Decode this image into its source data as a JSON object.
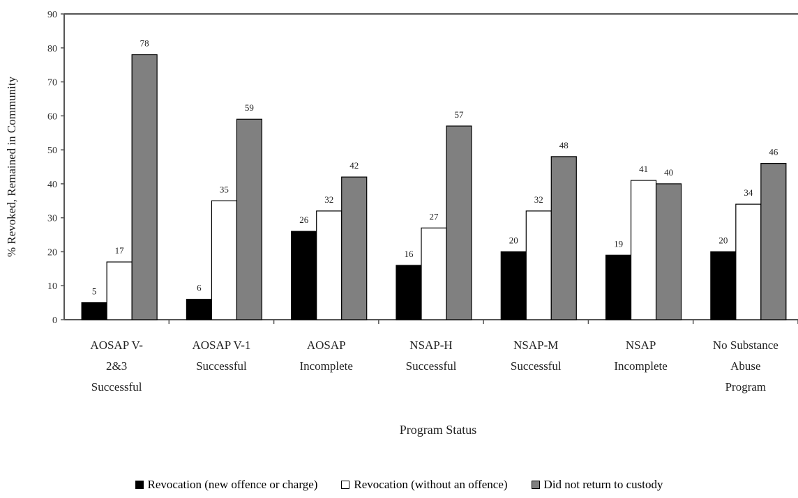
{
  "chart_data": {
    "type": "bar",
    "categories": [
      [
        "AOSAP V-",
        "2&3",
        "Successful"
      ],
      [
        "AOSAP V-1",
        "Successful"
      ],
      [
        "AOSAP",
        "Incomplete"
      ],
      [
        "NSAP-H",
        "Successful"
      ],
      [
        "NSAP-M",
        "Successful"
      ],
      [
        "NSAP",
        "Incomplete"
      ],
      [
        "No Substance",
        "Abuse",
        "Program"
      ]
    ],
    "series": [
      {
        "name": "Revocation (new offence or charge)",
        "color": "#000000",
        "values": [
          5,
          6,
          26,
          16,
          20,
          19,
          20
        ],
        "labels": [
          "5",
          "6",
          "26",
          "16",
          "20",
          "19",
          "20"
        ]
      },
      {
        "name": "Revocation (without an offence)",
        "color": "#ffffff",
        "values": [
          17,
          35,
          32,
          27,
          32,
          41,
          34
        ],
        "labels": [
          "17",
          "35",
          "32",
          "27",
          "32",
          "41",
          "34"
        ]
      },
      {
        "name": "Did not return to custody",
        "color": "#808080",
        "values": [
          78,
          59,
          42,
          57,
          48,
          40,
          46
        ],
        "labels": [
          "78",
          "59",
          "42",
          "57",
          "48",
          "40",
          "46"
        ]
      }
    ],
    "xlabel": "Program Status",
    "ylabel": "% Revoked, Remained in Community",
    "ylim": [
      0,
      90
    ],
    "yticks": [
      "0",
      "10",
      "20",
      "30",
      "40",
      "50",
      "60",
      "70",
      "80",
      "90"
    ],
    "grid": false,
    "legend_position": "bottom"
  }
}
